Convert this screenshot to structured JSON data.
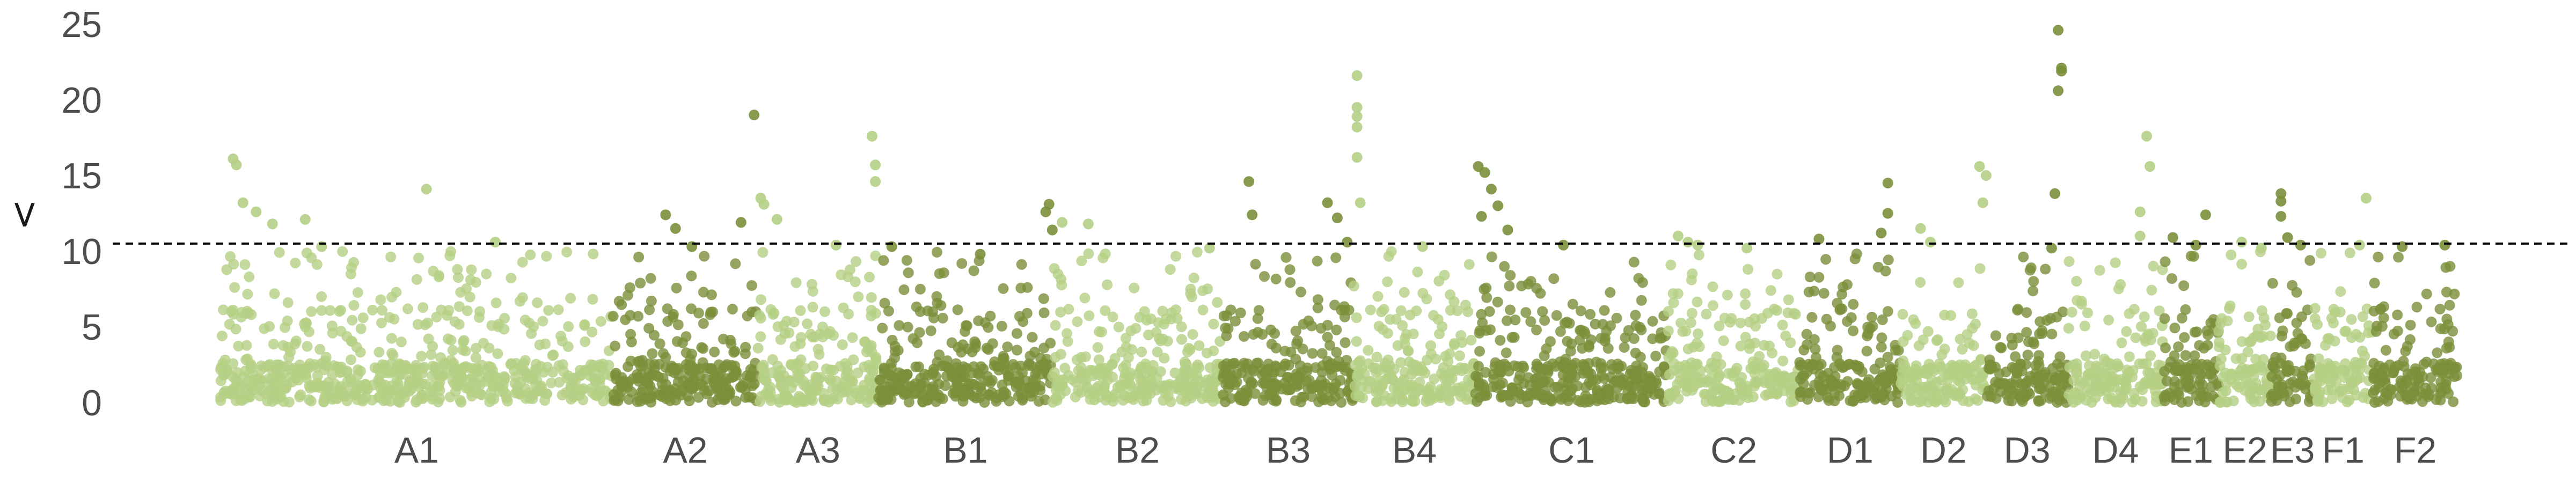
{
  "chart_data": {
    "type": "scatter",
    "title": "",
    "xlabel": "",
    "ylabel": "<",
    "ylim": [
      0,
      25
    ],
    "yticks": [
      0,
      5,
      10,
      15,
      20,
      25
    ],
    "threshold": 10.5,
    "grid": false,
    "legend": "none",
    "colors": {
      "light": "#b5cf85",
      "dark": "#7a8f3a",
      "threshold": "#000000"
    },
    "categories": [
      "A1",
      "A2",
      "A3",
      "B1",
      "B2",
      "B3",
      "B4",
      "C1",
      "C2",
      "D1",
      "D2",
      "D3",
      "D4",
      "E1",
      "E2",
      "E3",
      "F1",
      "F2"
    ],
    "groups": [
      {
        "label": "A1",
        "x": [
          0,
          12
        ],
        "tone": "light",
        "peaks": [
          [
            0.4,
            16.1
          ],
          [
            0.5,
            15.7
          ],
          [
            0.7,
            13.2
          ],
          [
            1.1,
            12.6
          ],
          [
            2.6,
            12.1
          ],
          [
            1.6,
            11.8
          ],
          [
            6.3,
            14.1
          ],
          [
            3.1,
            10.3
          ],
          [
            8.4,
            10.6
          ]
        ]
      },
      {
        "label": "A2",
        "x": [
          12,
          16.4
        ],
        "tone": "dark",
        "peaks": [
          [
            1.6,
            12.4
          ],
          [
            1.9,
            11.5
          ],
          [
            3.9,
            11.9
          ],
          [
            4.3,
            19.0
          ],
          [
            2.4,
            10.3
          ]
        ]
      },
      {
        "label": "A3",
        "x": [
          16.4,
          20.1
        ],
        "tone": "light",
        "peaks": [
          [
            0.1,
            13.5
          ],
          [
            0.2,
            13.1
          ],
          [
            0.6,
            12.1
          ],
          [
            3.5,
            17.6
          ],
          [
            3.6,
            15.7
          ],
          [
            3.6,
            14.6
          ],
          [
            2.4,
            10.4
          ]
        ]
      },
      {
        "label": "B1",
        "x": [
          20.1,
          25.4
        ],
        "tone": "dark",
        "peaks": [
          [
            0.4,
            10.3
          ],
          [
            3.1,
            9.8
          ],
          [
            5.2,
            13.1
          ],
          [
            5.1,
            12.6
          ],
          [
            5.3,
            11.4
          ]
        ]
      },
      {
        "label": "B2",
        "x": [
          25.4,
          30.6
        ],
        "tone": "light",
        "peaks": [
          [
            0.3,
            11.9
          ],
          [
            1.1,
            11.8
          ],
          [
            4.8,
            10.2
          ]
        ]
      },
      {
        "label": "B3",
        "x": [
          30.6,
          34.6
        ],
        "tone": "dark",
        "peaks": [
          [
            0.8,
            14.6
          ],
          [
            0.9,
            12.4
          ],
          [
            3.2,
            13.2
          ],
          [
            3.5,
            12.2
          ],
          [
            3.8,
            10.6
          ]
        ]
      },
      {
        "label": "B4",
        "x": [
          34.6,
          38.3
        ],
        "tone": "light",
        "peaks": [
          [
            0.1,
            21.6
          ],
          [
            0.1,
            19.5
          ],
          [
            0.1,
            18.9
          ],
          [
            0.1,
            18.2
          ],
          [
            0.1,
            16.2
          ],
          [
            0.2,
            13.2
          ],
          [
            2.1,
            10.3
          ]
        ]
      },
      {
        "label": "C1",
        "x": [
          38.3,
          44.2
        ],
        "tone": "dark",
        "peaks": [
          [
            0.1,
            15.6
          ],
          [
            0.3,
            15.2
          ],
          [
            0.5,
            14.1
          ],
          [
            0.7,
            13.0
          ],
          [
            0.2,
            12.3
          ],
          [
            1.0,
            11.4
          ],
          [
            2.7,
            10.4
          ]
        ]
      },
      {
        "label": "C2",
        "x": [
          44.2,
          48.2
        ],
        "tone": "light",
        "peaks": [
          [
            0.3,
            11.0
          ],
          [
            0.6,
            10.6
          ],
          [
            0.9,
            10.4
          ],
          [
            2.4,
            10.2
          ]
        ]
      },
      {
        "label": "D1",
        "x": [
          48.2,
          51.3
        ],
        "tone": "dark",
        "peaks": [
          [
            0.6,
            10.8
          ],
          [
            2.7,
            14.5
          ],
          [
            2.7,
            12.5
          ],
          [
            2.5,
            11.2
          ]
        ]
      },
      {
        "label": "D2",
        "x": [
          51.3,
          53.9
        ],
        "tone": "light",
        "peaks": [
          [
            0.6,
            11.5
          ],
          [
            0.9,
            10.6
          ],
          [
            2.4,
            15.6
          ],
          [
            2.6,
            15.0
          ],
          [
            2.5,
            13.2
          ]
        ]
      },
      {
        "label": "D3",
        "x": [
          53.9,
          56.4
        ],
        "tone": "dark",
        "peaks": [
          [
            2.2,
            24.6
          ],
          [
            2.3,
            22.1
          ],
          [
            2.3,
            21.9
          ],
          [
            2.2,
            20.6
          ],
          [
            2.1,
            13.8
          ],
          [
            2.0,
            10.2
          ]
        ]
      },
      {
        "label": "D4",
        "x": [
          56.4,
          59.3
        ],
        "tone": "light",
        "peaks": [
          [
            2.4,
            17.6
          ],
          [
            2.5,
            15.6
          ],
          [
            2.2,
            12.6
          ],
          [
            2.2,
            11.0
          ]
        ]
      },
      {
        "label": "E1",
        "x": [
          59.3,
          61.0
        ],
        "tone": "dark",
        "peaks": [
          [
            0.3,
            10.9
          ],
          [
            1.3,
            12.4
          ],
          [
            1.0,
            10.4
          ]
        ]
      },
      {
        "label": "E2",
        "x": [
          61.0,
          62.6
        ],
        "tone": "light",
        "peaks": [
          [
            0.7,
            10.6
          ],
          [
            1.3,
            10.2
          ]
        ]
      },
      {
        "label": "E3",
        "x": [
          62.6,
          63.9
        ],
        "tone": "dark",
        "peaks": [
          [
            0.3,
            13.8
          ],
          [
            0.3,
            13.3
          ],
          [
            0.3,
            12.3
          ],
          [
            0.5,
            10.9
          ],
          [
            0.9,
            10.4
          ]
        ]
      },
      {
        "label": "F1",
        "x": [
          63.9,
          65.7
        ],
        "tone": "light",
        "peaks": [
          [
            1.6,
            13.5
          ],
          [
            1.4,
            10.4
          ]
        ]
      },
      {
        "label": "F2",
        "x": [
          65.7,
          68.3
        ],
        "tone": "dark",
        "peaks": [
          [
            0.9,
            10.3
          ],
          [
            2.2,
            10.4
          ]
        ]
      }
    ]
  }
}
